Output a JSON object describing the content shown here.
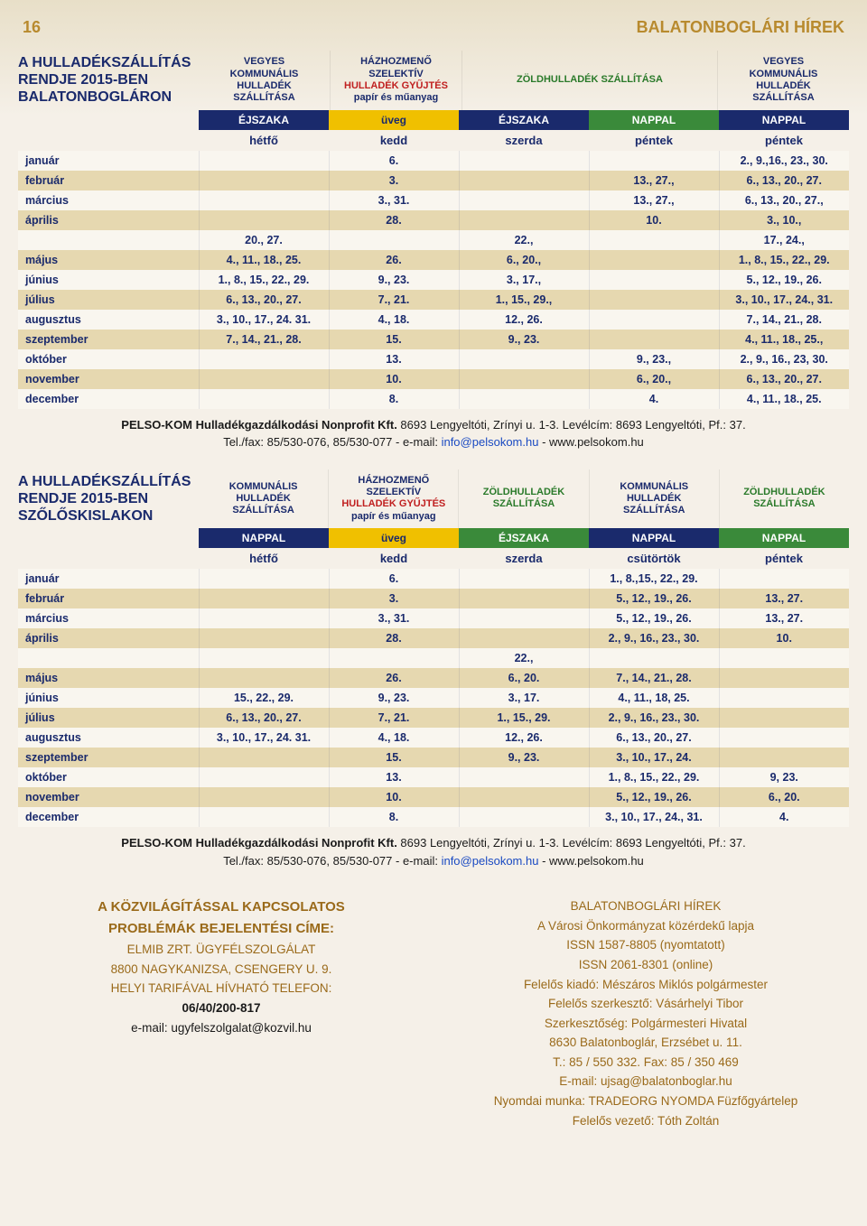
{
  "header": {
    "page_number": "16",
    "title": "BALATONBOGLÁRI HÍREK"
  },
  "colors": {
    "navy": "#1a2a6c",
    "yellow": "#f0c000",
    "green": "#3a8a3a",
    "alt_row": "#e6d8b0",
    "row": "#f9f6ef",
    "brown": "#9a6a1a",
    "background": "#f5f0e8"
  },
  "table1": {
    "title": "A HULLADÉKSZÁLLÍTÁS RENDJE 2015-BEN BALATONBOGLÁRON",
    "categories": [
      {
        "lines": [
          "VEGYES",
          "KOMMUNÁLIS",
          "HULLADÉK",
          "SZÁLLÍTÁSA"
        ],
        "class": "cat-kommunalis"
      },
      {
        "lines_styled": [
          {
            "t": "HÁZHOZMENŐ",
            "c": "l1"
          },
          {
            "t": "SZELEKTÍV",
            "c": "l1"
          },
          {
            "t": "HULLADÉK GYŰJTÉS",
            "c": "l2"
          },
          {
            "t": "papír és műanyag",
            "c": "l3"
          }
        ],
        "class": "cat-szelektiv"
      },
      {
        "lines": [
          "ZÖLDHULLADÉK SZÁLLÍTÁSA"
        ],
        "class": "cat-zold",
        "span": 2
      },
      {
        "lines": [
          "VEGYES",
          "KOMMUNÁLIS",
          "HULLADÉK",
          "SZÁLLÍTÁSA"
        ],
        "class": "cat-kommunalis"
      }
    ],
    "sub": [
      {
        "t": "ÉJSZAKA",
        "bg": "bg-navy"
      },
      {
        "t": "üveg",
        "bg": "bg-yellow"
      },
      {
        "t": "ÉJSZAKA",
        "bg": "bg-navy"
      },
      {
        "t": "NAPPAL",
        "bg": "bg-green"
      },
      {
        "t": "NAPPAL",
        "bg": "bg-navy"
      }
    ],
    "days": [
      "hétfő",
      "kedd",
      "szerda",
      "péntek",
      "péntek"
    ],
    "rows": [
      [
        "január",
        "",
        "6.",
        "",
        "",
        "2., 9.,16., 23., 30."
      ],
      [
        "február",
        "",
        "3.",
        "",
        "13., 27.,",
        "6., 13., 20., 27."
      ],
      [
        "március",
        "",
        "3., 31.",
        "",
        "13., 27.,",
        "6., 13., 20., 27.,"
      ],
      [
        "április",
        "",
        "28.",
        "",
        "10.",
        "3., 10.,"
      ],
      [
        "",
        "20., 27.",
        "",
        "22.,",
        "",
        "17., 24.,"
      ],
      [
        "május",
        "4., 11., 18., 25.",
        "26.",
        "6., 20.,",
        "",
        "1., 8., 15., 22., 29."
      ],
      [
        "június",
        "1., 8., 15., 22., 29.",
        "9., 23.",
        "3., 17.,",
        "",
        "5., 12., 19., 26."
      ],
      [
        "július",
        "6., 13., 20., 27.",
        "7., 21.",
        "1., 15., 29.,",
        "",
        "3., 10., 17., 24., 31."
      ],
      [
        "augusztus",
        "3., 10., 17., 24. 31.",
        "4., 18.",
        "12., 26.",
        "",
        "7., 14., 21., 28."
      ],
      [
        "szeptember",
        "7., 14., 21., 28.",
        "15.",
        "9., 23.",
        "",
        "4., 11., 18., 25.,"
      ],
      [
        "október",
        "",
        "13.",
        "",
        "9., 23.,",
        "2., 9., 16., 23, 30."
      ],
      [
        "november",
        "",
        "10.",
        "",
        "6., 20.,",
        "6., 13., 20., 27."
      ],
      [
        "december",
        "",
        "8.",
        "",
        "4.",
        "4., 11., 18., 25."
      ]
    ]
  },
  "footer1": {
    "org": "PELSO-KOM Hulladékgazdálkodási Nonprofit Kft.",
    "addr": " 8693 Lengyeltóti, Zrínyi u. 1-3. Levélcím: 8693 Lengyeltóti, Pf.: 37.",
    "contact_pre": "Tel./fax: 85/530-076, 85/530-077 - e-mail: ",
    "email": "info@pelsokom.hu",
    "contact_post": "  - www.pelsokom.hu"
  },
  "table2": {
    "title": "A HULLADÉKSZÁLLÍTÁS RENDJE 2015-BEN SZŐLŐSKISLAKON",
    "categories": [
      {
        "lines": [
          "KOMMUNÁLIS",
          "HULLADÉK",
          "SZÁLLÍTÁSA"
        ],
        "class": "cat-kommunalis"
      },
      {
        "lines_styled": [
          {
            "t": "HÁZHOZMENŐ",
            "c": "l1"
          },
          {
            "t": "SZELEKTÍV",
            "c": "l1"
          },
          {
            "t": "HULLADÉK GYŰJTÉS",
            "c": "l2"
          },
          {
            "t": "papír és műanyag",
            "c": "l3"
          }
        ],
        "class": "cat-szelektiv"
      },
      {
        "lines": [
          "ZÖLDHULLADÉK",
          "SZÁLLÍTÁSA"
        ],
        "class": "cat-zold"
      },
      {
        "lines": [
          "KOMMUNÁLIS",
          "HULLADÉK",
          "SZÁLLÍTÁSA"
        ],
        "class": "cat-kommunalis"
      },
      {
        "lines": [
          "ZÖLDHULLADÉK",
          "SZÁLLÍTÁSA"
        ],
        "class": "cat-zold"
      }
    ],
    "sub": [
      {
        "t": "NAPPAL",
        "bg": "bg-navy"
      },
      {
        "t": "üveg",
        "bg": "bg-yellow"
      },
      {
        "t": "ÉJSZAKA",
        "bg": "bg-green"
      },
      {
        "t": "NAPPAL",
        "bg": "bg-navy"
      },
      {
        "t": "NAPPAL",
        "bg": "bg-green"
      }
    ],
    "days": [
      "hétfő",
      "kedd",
      "szerda",
      "csütörtök",
      "péntek"
    ],
    "rows": [
      [
        "január",
        "",
        "6.",
        "",
        "1., 8.,15., 22., 29.",
        ""
      ],
      [
        "február",
        "",
        "3.",
        "",
        "5., 12., 19., 26.",
        "13., 27."
      ],
      [
        "március",
        "",
        "3., 31.",
        "",
        "5., 12., 19., 26.",
        "13., 27."
      ],
      [
        "április",
        "",
        "28.",
        "",
        "2., 9., 16., 23., 30.",
        "10."
      ],
      [
        "",
        "",
        "",
        "22.,",
        "",
        ""
      ],
      [
        "május",
        "",
        "26.",
        "6., 20.",
        "7., 14., 21., 28.",
        ""
      ],
      [
        "június",
        "15., 22., 29.",
        "9., 23.",
        "3., 17.",
        "4., 11., 18, 25.",
        ""
      ],
      [
        "július",
        "6., 13., 20., 27.",
        "7., 21.",
        "1., 15., 29.",
        "2., 9., 16., 23., 30.",
        ""
      ],
      [
        "augusztus",
        "3., 10., 17., 24. 31.",
        "4., 18.",
        "12., 26.",
        "6., 13., 20., 27.",
        ""
      ],
      [
        "szeptember",
        "",
        "15.",
        "9., 23.",
        "3., 10., 17., 24.",
        ""
      ],
      [
        "október",
        "",
        "13.",
        "",
        "1., 8., 15., 22., 29.",
        "9, 23."
      ],
      [
        "november",
        "",
        "10.",
        "",
        "5., 12., 19., 26.",
        "6., 20."
      ],
      [
        "december",
        "",
        "8.",
        "",
        "3., 10., 17., 24., 31.",
        "4."
      ]
    ]
  },
  "bottom_left": {
    "l1": "A KÖZVILÁGÍTÁSSAL KAPCSOLATOS",
    "l2": "PROBLÉMÁK BEJELENTÉSI CÍME:",
    "l3": "ELMIB ZRT. ÜGYFÉLSZOLGÁLAT",
    "l4": "8800 NAGYKANIZSA, CSENGERY U. 9.",
    "l5": "HELYI TARIFÁVAL HÍVHATÓ TELEFON:",
    "l6": "06/40/200-817",
    "l7": "e-mail: ugyfelszolgalat@kozvil.hu"
  },
  "bottom_right": {
    "l1": "BALATONBOGLÁRI HÍREK",
    "l2": "A Városi Önkormányzat közérdekű lapja",
    "l3": "ISSN 1587-8805 (nyomtatott)",
    "l4": "ISSN 2061-8301 (online)",
    "l5": "Felelős kiadó: Mészáros Miklós polgármester",
    "l6": "Felelős szerkesztő: Vásárhelyi Tibor",
    "l7": "Szerkesztőség: Polgármesteri Hivatal",
    "l8": "8630 Balatonboglár, Erzsébet u. 11.",
    "l9": "T.: 85 / 550 332. Fax: 85 / 350 469",
    "l10": "E-mail: ujsag@balatonboglar.hu",
    "l11": "Nyomdai munka: TRADEORG NYOMDA Füzfőgyártelep",
    "l12": "Felelős vezető: Tóth Zoltán"
  }
}
